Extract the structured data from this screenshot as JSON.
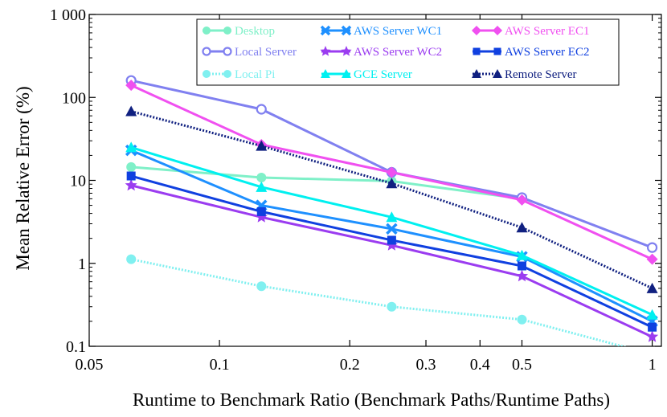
{
  "chart_data": {
    "type": "line",
    "xlabel": "Runtime to Benchmark Ratio (Benchmark Paths/Runtime Paths)",
    "ylabel": "Mean Relative Error (%)",
    "xscale": "log",
    "yscale": "log",
    "xlim": [
      0.05,
      1.05
    ],
    "ylim": [
      0.1,
      1000
    ],
    "grid": false,
    "legend_position": "top-right",
    "x_ticks": [
      {
        "value": 0.05,
        "label": "0.05"
      },
      {
        "value": 0.1,
        "label": "0.1"
      },
      {
        "value": 0.2,
        "label": "0.2"
      },
      {
        "value": 0.3,
        "label": "0.3"
      },
      {
        "value": 0.4,
        "label": "0.4"
      },
      {
        "value": 0.5,
        "label": "0.5"
      },
      {
        "value": 1,
        "label": "1"
      }
    ],
    "y_ticks": [
      {
        "value": 0.1,
        "label": "0.1"
      },
      {
        "value": 1,
        "label": "1"
      },
      {
        "value": 10,
        "label": "10"
      },
      {
        "value": 100,
        "label": "100"
      },
      {
        "value": 1000,
        "label": "1 000"
      }
    ],
    "x": [
      0.0625,
      0.125,
      0.25,
      0.5,
      1
    ],
    "series": [
      {
        "name": "Desktop",
        "color": "#7ff0c8",
        "marker": "circle",
        "dash": "solid",
        "values": [
          14.5,
          10.8,
          9.8,
          6.0,
          null
        ]
      },
      {
        "name": "Local Server",
        "color": "#8080f0",
        "marker": "circle-open",
        "dash": "solid",
        "values": [
          160,
          72,
          12.5,
          6.2,
          1.55
        ]
      },
      {
        "name": "Local Pi",
        "color": "#80f0f0",
        "marker": "circle",
        "dash": "dotted",
        "values": [
          1.12,
          0.53,
          0.3,
          0.21,
          0.08
        ]
      },
      {
        "name": "AWS Server WC1",
        "color": "#1e90ff",
        "marker": "x",
        "dash": "solid",
        "values": [
          23,
          5.0,
          2.6,
          1.2,
          0.2
        ]
      },
      {
        "name": "AWS Server WC2",
        "color": "#9b3cf0",
        "marker": "star",
        "dash": "solid",
        "values": [
          8.7,
          3.6,
          1.65,
          0.7,
          0.13
        ]
      },
      {
        "name": "GCE Server",
        "color": "#00f0f0",
        "marker": "triangle",
        "dash": "solid",
        "values": [
          25,
          8.3,
          3.6,
          1.25,
          0.24
        ]
      },
      {
        "name": "AWS Server EC1",
        "color": "#f050f0",
        "marker": "diamond",
        "dash": "solid",
        "values": [
          140,
          27,
          12.5,
          5.8,
          1.12
        ]
      },
      {
        "name": "AWS Server EC2",
        "color": "#1040e0",
        "marker": "square",
        "dash": "solid",
        "values": [
          11.3,
          4.2,
          1.9,
          0.93,
          0.17
        ]
      },
      {
        "name": "Remote Server",
        "color": "#102080",
        "marker": "triangle",
        "dash": "dotted",
        "values": [
          68,
          26,
          9.2,
          2.7,
          0.5
        ]
      }
    ]
  }
}
